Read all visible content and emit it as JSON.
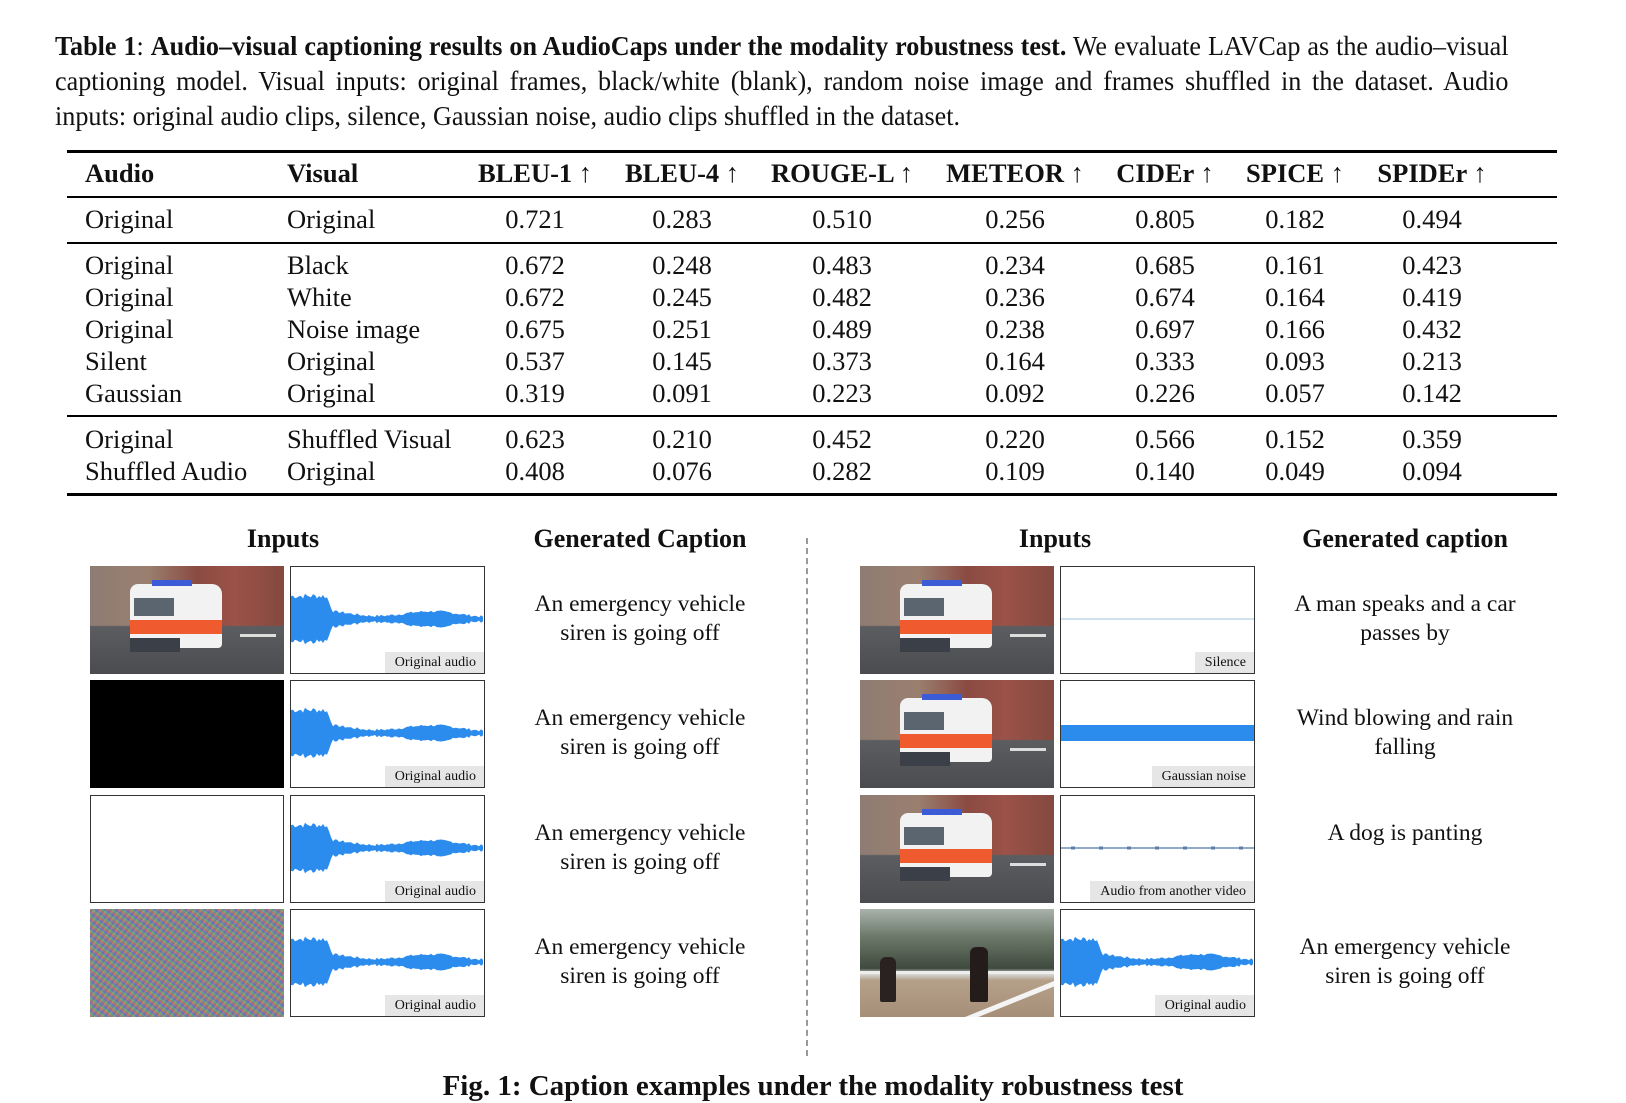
{
  "caption": {
    "label": "Table 1",
    "title": "Audio–visual captioning results on AudioCaps under the modality robustness test.",
    "body": "We evaluate LAVCap as the audio–visual captioning model. Visual inputs: original frames, black/white (blank), random noise image and frames shuffled in the dataset. Audio inputs: original audio clips, silence, Gaussian noise, audio clips shuffled in the dataset."
  },
  "table": {
    "headers": [
      "Audio",
      "Visual",
      "BLEU-1 ↑",
      "BLEU-4 ↑",
      "ROUGE-L ↑",
      "METEOR ↑",
      "CIDEr ↑",
      "SPICE ↑",
      "SPIDEr ↑"
    ],
    "groups": [
      [
        [
          "Original",
          "Original",
          "0.721",
          "0.283",
          "0.510",
          "0.256",
          "0.805",
          "0.182",
          "0.494"
        ]
      ],
      [
        [
          "Original",
          "Black",
          "0.672",
          "0.248",
          "0.483",
          "0.234",
          "0.685",
          "0.161",
          "0.423"
        ],
        [
          "Original",
          "White",
          "0.672",
          "0.245",
          "0.482",
          "0.236",
          "0.674",
          "0.164",
          "0.419"
        ],
        [
          "Original",
          "Noise image",
          "0.675",
          "0.251",
          "0.489",
          "0.238",
          "0.697",
          "0.166",
          "0.432"
        ],
        [
          "Silent",
          "Original",
          "0.537",
          "0.145",
          "0.373",
          "0.164",
          "0.333",
          "0.093",
          "0.213"
        ],
        [
          "Gaussian",
          "Original",
          "0.319",
          "0.091",
          "0.223",
          "0.092",
          "0.226",
          "0.057",
          "0.142"
        ]
      ],
      [
        [
          "Original",
          "Shuffled Visual",
          "0.623",
          "0.210",
          "0.452",
          "0.220",
          "0.566",
          "0.152",
          "0.359"
        ],
        [
          "Shuffled Audio",
          "Original",
          "0.408",
          "0.076",
          "0.282",
          "0.109",
          "0.140",
          "0.049",
          "0.094"
        ]
      ]
    ]
  },
  "figure": {
    "left": {
      "inputs_heading": "Inputs",
      "caption_heading": "Generated Caption",
      "rows": [
        {
          "image": "ambulance-frame",
          "audio_label": "Original audio",
          "waveform": "original",
          "caption": "An emergency vehicle siren is going off"
        },
        {
          "image": "black-frame",
          "audio_label": "Original audio",
          "waveform": "original",
          "caption": "An emergency vehicle siren is going off"
        },
        {
          "image": "white-frame",
          "audio_label": "Original audio",
          "waveform": "original",
          "caption": "An emergency vehicle siren is going off"
        },
        {
          "image": "noise-frame",
          "audio_label": "Original audio",
          "waveform": "original",
          "caption": "An emergency vehicle siren is going off"
        }
      ]
    },
    "right": {
      "inputs_heading": "Inputs",
      "caption_heading": "Generated caption",
      "rows": [
        {
          "image": "ambulance-frame",
          "audio_label": "Silence",
          "waveform": "silence",
          "caption": "A man speaks and a car passes by"
        },
        {
          "image": "ambulance-frame",
          "audio_label": "Gaussian noise",
          "waveform": "gaussian",
          "caption": "Wind blowing and rain falling"
        },
        {
          "image": "ambulance-frame",
          "audio_label": "Audio from another video",
          "waveform": "other",
          "caption": "A dog is panting"
        },
        {
          "image": "horses-frame",
          "audio_label": "Original audio",
          "waveform": "original",
          "caption": "An emergency vehicle siren is going off"
        }
      ]
    },
    "fig_caption": "Fig. 1: Caption examples under the modality robustness test"
  },
  "colors": {
    "waveform": "#2b8cee",
    "label_bg": "#e6e6e6",
    "divider": "#999999"
  }
}
